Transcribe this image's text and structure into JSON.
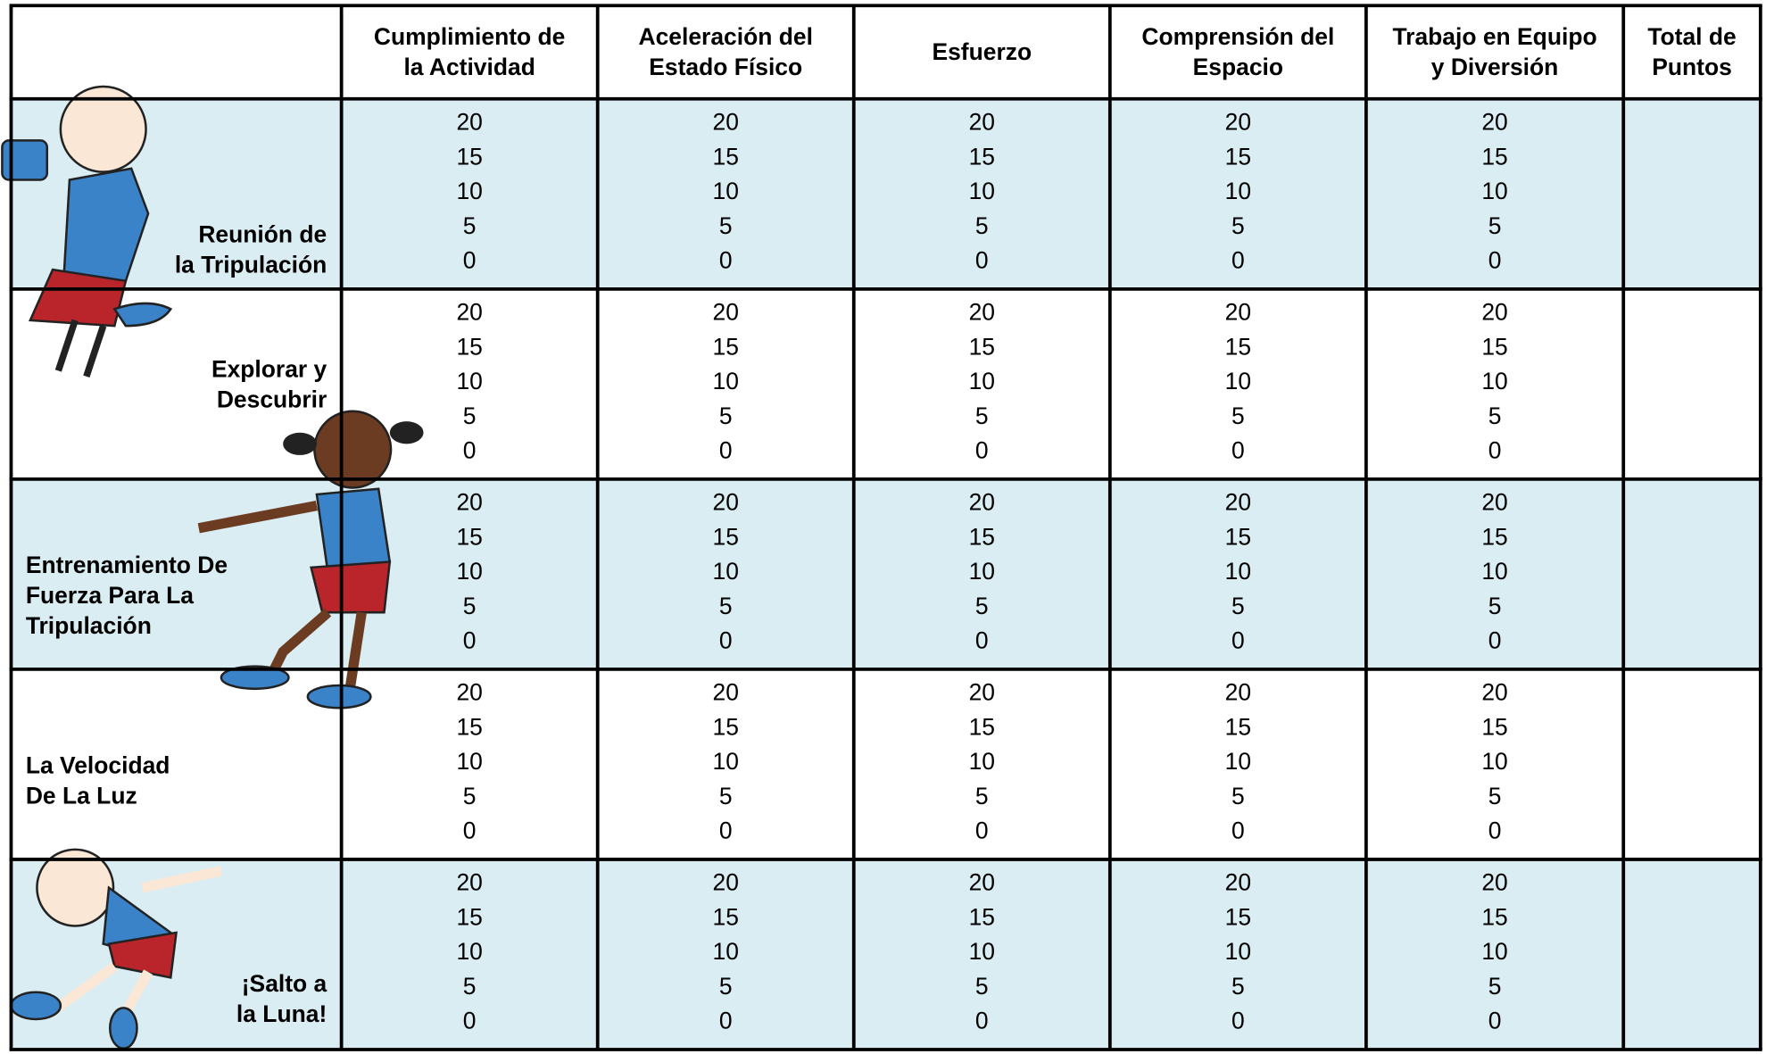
{
  "table": {
    "headers": [
      [
        "Cumplimiento de",
        "la Actividad"
      ],
      [
        "Aceleración del",
        "Estado Físico"
      ],
      [
        "Esfuerzo"
      ],
      [
        "Comprensión del",
        "Espacio"
      ],
      [
        "Trabajo en Equipo",
        "y Diversión"
      ],
      [
        "Total de",
        "Puntos"
      ]
    ],
    "rows": [
      {
        "label": [
          "Reunión de",
          "la Tripulación"
        ],
        "scores": [
          [
            20,
            15,
            10,
            5,
            0
          ],
          [
            20,
            15,
            10,
            5,
            0
          ],
          [
            20,
            15,
            10,
            5,
            0
          ],
          [
            20,
            15,
            10,
            5,
            0
          ],
          [
            20,
            15,
            10,
            5,
            0
          ]
        ]
      },
      {
        "label": [
          "Explorar y",
          "Descubrir"
        ],
        "scores": [
          [
            20,
            15,
            10,
            5,
            0
          ],
          [
            20,
            15,
            10,
            5,
            0
          ],
          [
            20,
            15,
            10,
            5,
            0
          ],
          [
            20,
            15,
            10,
            5,
            0
          ],
          [
            20,
            15,
            10,
            5,
            0
          ]
        ]
      },
      {
        "label": [
          "Entrenamiento De",
          "Fuerza Para La",
          "Tripulación"
        ],
        "scores": [
          [
            20,
            15,
            10,
            5,
            0
          ],
          [
            20,
            15,
            10,
            5,
            0
          ],
          [
            20,
            15,
            10,
            5,
            0
          ],
          [
            20,
            15,
            10,
            5,
            0
          ],
          [
            20,
            15,
            10,
            5,
            0
          ]
        ]
      },
      {
        "label": [
          "La Velocidad",
          "De La Luz"
        ],
        "scores": [
          [
            20,
            15,
            10,
            5,
            0
          ],
          [
            20,
            15,
            10,
            5,
            0
          ],
          [
            20,
            15,
            10,
            5,
            0
          ],
          [
            20,
            15,
            10,
            5,
            0
          ],
          [
            20,
            15,
            10,
            5,
            0
          ]
        ]
      },
      {
        "label": [
          "¡Salto a",
          "la Luna!"
        ],
        "scores": [
          [
            20,
            15,
            10,
            5,
            0
          ],
          [
            20,
            15,
            10,
            5,
            0
          ],
          [
            20,
            15,
            10,
            5,
            0
          ],
          [
            20,
            15,
            10,
            5,
            0
          ],
          [
            20,
            15,
            10,
            5,
            0
          ]
        ]
      }
    ]
  }
}
